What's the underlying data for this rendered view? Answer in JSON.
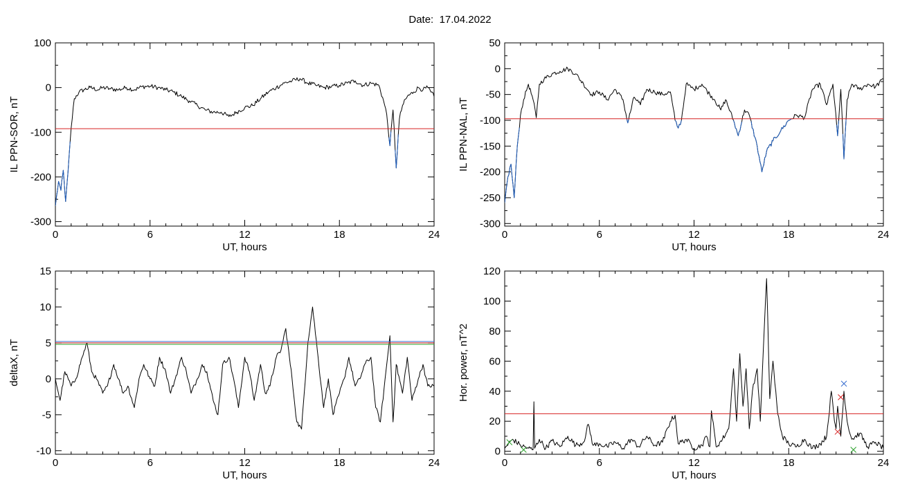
{
  "header": {
    "date_label": "Date:",
    "date_value": "17.04.2022"
  },
  "colors": {
    "trace": "#000000",
    "below_threshold": "#1f5fbf",
    "threshold_red": "#d62020",
    "threshold_blue": "#3a6fd0",
    "threshold_green": "#2aa02a"
  },
  "chart_data": [
    {
      "type": "line",
      "xlabel": "UT, hours",
      "ylabel": "IL PPN-SOR, nT",
      "xlim": [
        0,
        24
      ],
      "ylim": [
        -310,
        100
      ],
      "xticks": [
        0,
        6,
        12,
        18,
        24
      ],
      "yticks": [
        -300,
        -200,
        -100,
        0,
        100
      ],
      "thresholds": [
        {
          "value": -92,
          "color": "red"
        }
      ],
      "below_threshold_color": "blue",
      "x": [
        0,
        0.2,
        0.35,
        0.5,
        0.65,
        0.8,
        1.0,
        1.2,
        1.5,
        1.8,
        2.2,
        2.7,
        3.0,
        3.5,
        4.0,
        4.5,
        5.0,
        5.5,
        6.0,
        6.5,
        7.0,
        7.5,
        8.0,
        8.5,
        9.0,
        9.5,
        10.0,
        10.5,
        11.0,
        11.5,
        12.0,
        12.5,
        13.0,
        13.5,
        14.0,
        14.5,
        15.0,
        15.5,
        16.0,
        16.5,
        17.0,
        17.5,
        18.0,
        18.5,
        19.0,
        19.5,
        20.0,
        20.5,
        20.8,
        21.0,
        21.2,
        21.4,
        21.6,
        21.8,
        22.0,
        22.3,
        22.7,
        23.0,
        23.3,
        23.6,
        23.8,
        24.0
      ],
      "y": [
        -265,
        -210,
        -230,
        -185,
        -255,
        -190,
        -90,
        -25,
        -10,
        -5,
        0,
        -5,
        0,
        -3,
        -5,
        0,
        -5,
        2,
        3,
        0,
        -5,
        -10,
        -20,
        -30,
        -40,
        -50,
        -55,
        -55,
        -65,
        -55,
        -45,
        -40,
        -25,
        -10,
        0,
        10,
        15,
        20,
        10,
        5,
        0,
        2,
        5,
        10,
        15,
        5,
        10,
        5,
        -30,
        -60,
        -130,
        -50,
        -180,
        -70,
        -40,
        -20,
        -10,
        0,
        -5,
        0,
        -10,
        -20
      ]
    },
    {
      "type": "line",
      "xlabel": "UT, hours",
      "ylabel": "IL PPN-NAL, nT",
      "xlim": [
        0,
        24
      ],
      "ylim": [
        -305,
        50
      ],
      "xticks": [
        0,
        6,
        12,
        18,
        24
      ],
      "yticks": [
        -300,
        -250,
        -200,
        -150,
        -100,
        -50,
        0,
        50
      ],
      "thresholds": [
        {
          "value": -97,
          "color": "red"
        }
      ],
      "below_threshold_color": "blue",
      "x": [
        0,
        0.2,
        0.4,
        0.6,
        0.8,
        1.0,
        1.2,
        1.5,
        1.8,
        2.0,
        2.2,
        2.5,
        3.0,
        3.5,
        4.0,
        4.5,
        5.0,
        5.5,
        6.0,
        6.5,
        7.0,
        7.5,
        7.8,
        8.2,
        8.6,
        9.0,
        9.5,
        10.0,
        10.5,
        10.8,
        11.0,
        11.2,
        11.5,
        12.0,
        12.5,
        13.0,
        13.3,
        13.7,
        14.0,
        14.5,
        14.8,
        15.2,
        15.5,
        16.0,
        16.3,
        16.6,
        17.0,
        17.5,
        18.0,
        18.5,
        19.0,
        19.5,
        20.0,
        20.4,
        20.8,
        21.1,
        21.3,
        21.5,
        21.7,
        22.0,
        22.5,
        23.0,
        23.5,
        24.0
      ],
      "y": [
        -260,
        -210,
        -185,
        -250,
        -150,
        -90,
        -60,
        -30,
        -60,
        -95,
        -30,
        -20,
        -10,
        -5,
        0,
        -10,
        -30,
        -50,
        -45,
        -60,
        -40,
        -60,
        -105,
        -55,
        -70,
        -40,
        -45,
        -50,
        -45,
        -100,
        -115,
        -100,
        -30,
        -40,
        -30,
        -50,
        -60,
        -80,
        -60,
        -100,
        -130,
        -80,
        -90,
        -150,
        -200,
        -160,
        -140,
        -120,
        -100,
        -90,
        -95,
        -40,
        -30,
        -70,
        -30,
        -130,
        -40,
        -175,
        -60,
        -30,
        -40,
        -30,
        -35,
        -20
      ]
    },
    {
      "type": "line",
      "xlabel": "UT, hours",
      "ylabel": "deltaX, nT",
      "xlim": [
        0,
        24
      ],
      "ylim": [
        -10.5,
        15
      ],
      "xticks": [
        0,
        6,
        12,
        18,
        24
      ],
      "yticks": [
        -10,
        -5,
        0,
        5,
        10,
        15
      ],
      "thresholds": [
        {
          "value": 5.2,
          "color": "blue"
        },
        {
          "value": 5.0,
          "color": "red"
        },
        {
          "value": 4.8,
          "color": "green"
        }
      ],
      "x": [
        0,
        0.3,
        0.6,
        1.0,
        1.3,
        1.7,
        2.0,
        2.3,
        2.6,
        3.0,
        3.3,
        3.7,
        4.0,
        4.3,
        4.6,
        5.0,
        5.3,
        5.6,
        6.0,
        6.3,
        6.6,
        7.0,
        7.3,
        7.6,
        8.0,
        8.3,
        8.6,
        9.0,
        9.3,
        9.6,
        10.0,
        10.3,
        10.6,
        11.0,
        11.3,
        11.6,
        12.0,
        12.3,
        12.6,
        13.0,
        13.3,
        13.6,
        14.0,
        14.3,
        14.6,
        15.0,
        15.3,
        15.6,
        16.0,
        16.3,
        16.6,
        17.0,
        17.3,
        17.6,
        18.0,
        18.3,
        18.6,
        19.0,
        19.3,
        19.6,
        20.0,
        20.3,
        20.6,
        21.0,
        21.2,
        21.4,
        21.6,
        22.0,
        22.3,
        22.6,
        23.0,
        23.3,
        23.6,
        24.0
      ],
      "y": [
        0,
        -3,
        1,
        -1,
        0,
        3,
        5,
        1,
        0,
        -2,
        -1,
        2,
        0,
        -2,
        -1,
        -4,
        0,
        2,
        0,
        -1,
        3,
        1,
        -2,
        0,
        3,
        1,
        -2,
        0,
        2,
        1,
        -3,
        -5,
        2,
        3,
        0,
        -4,
        3,
        1,
        -3,
        2,
        -2,
        -1,
        3,
        4,
        7,
        0,
        -6,
        -7,
        5,
        10,
        4,
        -4,
        0,
        -5,
        -2,
        0,
        3,
        -1,
        0,
        2,
        3,
        -4,
        -6,
        2,
        6,
        -6,
        2,
        -2,
        3,
        -3,
        0,
        2,
        -1,
        -1
      ]
    },
    {
      "type": "line",
      "xlabel": "UT, hours",
      "ylabel": "Hor. power, nT^2",
      "xlim": [
        0,
        24
      ],
      "ylim": [
        -2,
        120
      ],
      "xticks": [
        0,
        6,
        12,
        18,
        24
      ],
      "yticks": [
        0,
        20,
        40,
        60,
        80,
        100,
        120
      ],
      "thresholds": [
        {
          "value": 25,
          "color": "red"
        }
      ],
      "x": [
        0,
        0.5,
        1.0,
        1.5,
        1.8,
        1.85,
        1.9,
        2.2,
        2.6,
        3.0,
        3.5,
        4.0,
        4.5,
        5.0,
        5.3,
        5.6,
        6.0,
        6.5,
        7.0,
        7.5,
        8.0,
        8.5,
        9.0,
        9.5,
        10.0,
        10.5,
        10.8,
        11.0,
        11.5,
        12.0,
        12.5,
        12.8,
        13.0,
        13.1,
        13.4,
        13.8,
        14.2,
        14.5,
        14.7,
        14.9,
        15.1,
        15.3,
        15.5,
        15.7,
        16.0,
        16.2,
        16.4,
        16.6,
        16.8,
        17.0,
        17.3,
        17.6,
        18.0,
        18.5,
        19.0,
        19.5,
        20.0,
        20.4,
        20.7,
        20.9,
        21.0,
        21.1,
        21.3,
        21.5,
        21.7,
        22.0,
        22.5,
        23.0,
        23.5,
        24.0
      ],
      "y": [
        2,
        8,
        4,
        2,
        1,
        33,
        2,
        8,
        2,
        7,
        3,
        10,
        4,
        6,
        18,
        4,
        5,
        3,
        6,
        2,
        8,
        3,
        10,
        4,
        6,
        20,
        24,
        5,
        8,
        2,
        4,
        10,
        3,
        27,
        3,
        8,
        15,
        55,
        20,
        65,
        30,
        55,
        15,
        40,
        55,
        20,
        70,
        115,
        35,
        60,
        25,
        10,
        5,
        3,
        8,
        2,
        5,
        10,
        40,
        20,
        15,
        30,
        10,
        40,
        20,
        8,
        12,
        3,
        6,
        2
      ],
      "markers": [
        {
          "x": 21.5,
          "y": 45,
          "symbol": "x",
          "color": "blue"
        },
        {
          "x": 21.3,
          "y": 36,
          "symbol": "x",
          "color": "red"
        },
        {
          "x": 21.1,
          "y": 13,
          "symbol": "x",
          "color": "red"
        },
        {
          "x": 0.3,
          "y": 6,
          "symbol": "x",
          "color": "green"
        },
        {
          "x": 1.2,
          "y": 1,
          "symbol": "x",
          "color": "green"
        },
        {
          "x": 22.1,
          "y": 1,
          "symbol": "x",
          "color": "green"
        }
      ]
    }
  ]
}
